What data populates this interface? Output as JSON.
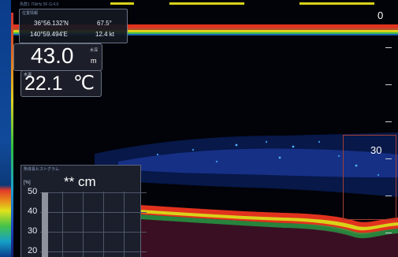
{
  "header": {
    "status_text": "魚群1  70kHz 5F  G:4.9"
  },
  "gps": {
    "title": "位置情報",
    "latitude": "36°56.132'N",
    "longitude": "140°59.494'E",
    "heading": "67.5°",
    "speed": "12.4 kt"
  },
  "depth": {
    "value": "43.0",
    "unit": "m",
    "tag": "水深"
  },
  "water_temp": {
    "tag": "水温",
    "value": "22.1",
    "unit": "℃"
  },
  "depth_scale": {
    "top_label": "0",
    "zoom_label": "30"
  },
  "size_chart": {
    "title": "魚体長ヒストグラム",
    "unit_bracket": "[%]",
    "unit": "** cm",
    "y_ticks": [
      "50",
      "40",
      "30",
      "20"
    ],
    "y_range": [
      17,
      50
    ],
    "bar_value": 50
  },
  "colors": {
    "background": "#020308",
    "surface_red": "#e1321e",
    "surface_yellow": "#d9d21a",
    "surface_green": "#3fbd4c",
    "echo_blue": "#2e55c8"
  }
}
